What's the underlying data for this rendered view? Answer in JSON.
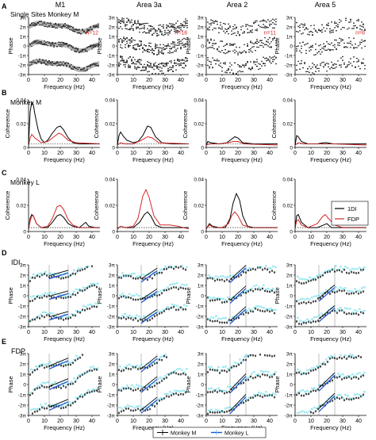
{
  "panel_letters": [
    "A",
    "B",
    "C",
    "D",
    "E"
  ],
  "column_titles": [
    "M1",
    "Area 3a",
    "Area 2",
    "Area 5"
  ],
  "row_titles": {
    "a": "Single Sites Monkey M",
    "b": "Monkey M",
    "c": "Monkey L",
    "d": "IDI",
    "e": "FDP"
  },
  "colors": {
    "black": "#000000",
    "red": "#d62728",
    "cyan": "#3fd5e6",
    "blue": "#1f4fd6",
    "grid": "#7f7f7f"
  },
  "chart_data": [
    {
      "panel": "A",
      "type": "scatter",
      "xlabel": "Frequency (Hz)",
      "ylabel": "Phase",
      "xlim": [
        0,
        45
      ],
      "ylim": [
        -3,
        3
      ],
      "y_unit": "π",
      "x_ticks": [
        0,
        10,
        20,
        30,
        40
      ],
      "y_tick_labels": [
        "3π",
        "2π",
        "1π",
        "0",
        "-1π",
        "-2π",
        "-3π"
      ],
      "n_labels": [
        "n=12",
        "n=18",
        "n=11",
        "n=6"
      ]
    },
    {
      "panel": "B",
      "type": "line",
      "xlabel": "Frequency (Hz)",
      "ylabel": "Coherence",
      "xlim": [
        0,
        45
      ],
      "ylim": [
        0,
        0.04
      ],
      "x_ticks": [
        0,
        10,
        20,
        30,
        40
      ],
      "y_tick_labels": [
        "0.04",
        "0.02",
        "0"
      ],
      "series": [
        {
          "columns": [
            [
              [
                0,
                0.003
              ],
              [
                1,
                0.03
              ],
              [
                2,
                0.038
              ],
              [
                3,
                0.036
              ],
              [
                4,
                0.028
              ],
              [
                6,
                0.015
              ],
              [
                8,
                0.007
              ],
              [
                10,
                0.004
              ],
              [
                12,
                0.006
              ],
              [
                15,
                0.012
              ],
              [
                18,
                0.017
              ],
              [
                20,
                0.018
              ],
              [
                22,
                0.015
              ],
              [
                25,
                0.008
              ],
              [
                28,
                0.004
              ],
              [
                32,
                0.003
              ],
              [
                38,
                0.003
              ],
              [
                45,
                0.003
              ]
            ],
            [
              [
                0,
                0.002
              ],
              [
                1,
                0.01
              ],
              [
                2,
                0.013
              ],
              [
                4,
                0.009
              ],
              [
                6,
                0.006
              ],
              [
                10,
                0.004
              ],
              [
                13,
                0.005
              ],
              [
                16,
                0.01
              ],
              [
                19,
                0.018
              ],
              [
                21,
                0.017
              ],
              [
                24,
                0.009
              ],
              [
                28,
                0.004
              ],
              [
                35,
                0.003
              ],
              [
                45,
                0.003
              ]
            ],
            [
              [
                0,
                0.002
              ],
              [
                1,
                0.005
              ],
              [
                3,
                0.004
              ],
              [
                8,
                0.003
              ],
              [
                13,
                0.004
              ],
              [
                16,
                0.007
              ],
              [
                18,
                0.009
              ],
              [
                20,
                0.008
              ],
              [
                23,
                0.004
              ],
              [
                30,
                0.003
              ],
              [
                45,
                0.003
              ]
            ],
            [
              [
                0,
                0.002
              ],
              [
                1,
                0.01
              ],
              [
                2,
                0.009
              ],
              [
                4,
                0.005
              ],
              [
                8,
                0.003
              ],
              [
                14,
                0.003
              ],
              [
                18,
                0.004
              ],
              [
                20,
                0.004
              ],
              [
                24,
                0.003
              ],
              [
                45,
                0.003
              ]
            ]
          ]
        },
        {
          "columns": [
            [
              [
                0,
                0.002
              ],
              [
                1,
                0.008
              ],
              [
                2,
                0.011
              ],
              [
                4,
                0.008
              ],
              [
                8,
                0.004
              ],
              [
                12,
                0.005
              ],
              [
                16,
                0.009
              ],
              [
                19,
                0.012
              ],
              [
                21,
                0.011
              ],
              [
                25,
                0.006
              ],
              [
                30,
                0.004
              ],
              [
                45,
                0.003
              ]
            ],
            [
              [
                0,
                0.002
              ],
              [
                2,
                0.004
              ],
              [
                5,
                0.003
              ],
              [
                10,
                0.003
              ],
              [
                15,
                0.006
              ],
              [
                19,
                0.009
              ],
              [
                22,
                0.008
              ],
              [
                26,
                0.004
              ],
              [
                45,
                0.003
              ]
            ],
            [
              [
                0,
                0.002
              ],
              [
                2,
                0.003
              ],
              [
                8,
                0.003
              ],
              [
                14,
                0.004
              ],
              [
                17,
                0.005
              ],
              [
                20,
                0.005
              ],
              [
                24,
                0.003
              ],
              [
                45,
                0.002
              ]
            ],
            [
              [
                0,
                0.002
              ],
              [
                2,
                0.004
              ],
              [
                6,
                0.003
              ],
              [
                15,
                0.003
              ],
              [
                19,
                0.003
              ],
              [
                25,
                0.003
              ],
              [
                45,
                0.002
              ]
            ]
          ]
        }
      ]
    },
    {
      "panel": "C",
      "type": "line",
      "xlabel": "Frequency (Hz)",
      "ylabel": "Coherence",
      "xlim": [
        0,
        45
      ],
      "ylim": [
        0,
        0.04
      ],
      "x_ticks": [
        0,
        10,
        20,
        30,
        40
      ],
      "y_tick_labels": [
        "0.04",
        "0.02",
        "0"
      ],
      "series": [
        {
          "name": "1DI",
          "columns": [
            [
              [
                0,
                0.002
              ],
              [
                1,
                0.01
              ],
              [
                2,
                0.013
              ],
              [
                3,
                0.012
              ],
              [
                5,
                0.006
              ],
              [
                8,
                0.003
              ],
              [
                12,
                0.003
              ],
              [
                15,
                0.007
              ],
              [
                18,
                0.012
              ],
              [
                20,
                0.013
              ],
              [
                22,
                0.011
              ],
              [
                25,
                0.006
              ],
              [
                28,
                0.004
              ],
              [
                32,
                0.003
              ],
              [
                36,
                0.007
              ],
              [
                38,
                0.004
              ],
              [
                42,
                0.003
              ],
              [
                45,
                0.003
              ]
            ],
            [
              [
                0,
                0.002
              ],
              [
                2,
                0.004
              ],
              [
                5,
                0.003
              ],
              [
                10,
                0.003
              ],
              [
                14,
                0.007
              ],
              [
                17,
                0.013
              ],
              [
                19,
                0.015
              ],
              [
                21,
                0.012
              ],
              [
                24,
                0.005
              ],
              [
                28,
                0.003
              ],
              [
                45,
                0.003
              ]
            ],
            [
              [
                0,
                0.002
              ],
              [
                2,
                0.006
              ],
              [
                4,
                0.004
              ],
              [
                8,
                0.003
              ],
              [
                12,
                0.003
              ],
              [
                15,
                0.01
              ],
              [
                17,
                0.022
              ],
              [
                19,
                0.029
              ],
              [
                21,
                0.024
              ],
              [
                23,
                0.012
              ],
              [
                26,
                0.004
              ],
              [
                30,
                0.003
              ],
              [
                45,
                0.003
              ]
            ],
            [
              [
                0,
                0.003
              ],
              [
                1,
                0.012
              ],
              [
                2,
                0.013
              ],
              [
                4,
                0.007
              ],
              [
                8,
                0.003
              ],
              [
                14,
                0.003
              ],
              [
                18,
                0.005
              ],
              [
                20,
                0.006
              ],
              [
                23,
                0.003
              ],
              [
                45,
                0.003
              ]
            ]
          ]
        },
        {
          "name": "FDP",
          "columns": [
            [
              [
                0,
                0.002
              ],
              [
                1,
                0.008
              ],
              [
                2,
                0.012
              ],
              [
                3,
                0.012
              ],
              [
                5,
                0.006
              ],
              [
                8,
                0.003
              ],
              [
                12,
                0.004
              ],
              [
                15,
                0.01
              ],
              [
                18,
                0.019
              ],
              [
                20,
                0.02
              ],
              [
                22,
                0.017
              ],
              [
                25,
                0.009
              ],
              [
                28,
                0.005
              ],
              [
                32,
                0.003
              ],
              [
                38,
                0.003
              ],
              [
                45,
                0.003
              ]
            ],
            [
              [
                0,
                0.002
              ],
              [
                2,
                0.004
              ],
              [
                5,
                0.003
              ],
              [
                10,
                0.004
              ],
              [
                13,
                0.01
              ],
              [
                16,
                0.027
              ],
              [
                18,
                0.032
              ],
              [
                20,
                0.026
              ],
              [
                23,
                0.012
              ],
              [
                27,
                0.005
              ],
              [
                33,
                0.005
              ],
              [
                38,
                0.004
              ],
              [
                45,
                0.002
              ]
            ],
            [
              [
                0,
                0.002
              ],
              [
                2,
                0.005
              ],
              [
                5,
                0.003
              ],
              [
                10,
                0.003
              ],
              [
                14,
                0.006
              ],
              [
                16,
                0.012
              ],
              [
                18,
                0.015
              ],
              [
                20,
                0.012
              ],
              [
                23,
                0.005
              ],
              [
                28,
                0.003
              ],
              [
                45,
                0.003
              ]
            ],
            [
              [
                0,
                0.003
              ],
              [
                1,
                0.008
              ],
              [
                2,
                0.009
              ],
              [
                4,
                0.005
              ],
              [
                8,
                0.003
              ],
              [
                14,
                0.006
              ],
              [
                17,
                0.011
              ],
              [
                19,
                0.013
              ],
              [
                21,
                0.01
              ],
              [
                25,
                0.005
              ],
              [
                30,
                0.003
              ],
              [
                45,
                0.003
              ]
            ]
          ]
        }
      ]
    },
    {
      "panel": "D",
      "type": "scatter",
      "xlabel": "Frequency (Hz)",
      "ylabel": "Phase",
      "xlim": [
        0,
        45
      ],
      "ylim": [
        -3,
        3
      ],
      "y_unit": "π",
      "x_ticks": [
        0,
        10,
        20,
        30,
        40
      ],
      "y_tick_labels": [
        "3π",
        "2π",
        "1π",
        "0",
        "-1π",
        "-2π",
        "-3π"
      ],
      "shaded_band_hz": [
        [
          13,
          25
        ],
        [
          15,
          25
        ],
        [
          15,
          25
        ],
        [
          15,
          25
        ]
      ],
      "series": [
        {
          "name": "Monkey M"
        },
        {
          "name": "Monkey L"
        }
      ]
    },
    {
      "panel": "E",
      "type": "scatter",
      "xlabel": "Frequency (Hz)",
      "ylabel": "Phase",
      "xlim": [
        0,
        45
      ],
      "ylim": [
        -3,
        3
      ],
      "y_unit": "π",
      "x_ticks": [
        0,
        10,
        20,
        30,
        40
      ],
      "y_tick_labels": [
        "3π",
        "2π",
        "1π",
        "0",
        "-1π",
        "-2π",
        "-3π"
      ],
      "shaded_band_hz": [
        [
          13,
          25
        ],
        [
          15,
          25
        ],
        [
          15,
          25
        ],
        [
          15,
          25
        ]
      ],
      "series": [
        {
          "name": "Monkey M"
        },
        {
          "name": "Monkey L"
        }
      ]
    }
  ],
  "legend_c": [
    "1DI",
    "FDP"
  ],
  "legend_bottom": [
    "Monkey M",
    "Monkey L"
  ]
}
